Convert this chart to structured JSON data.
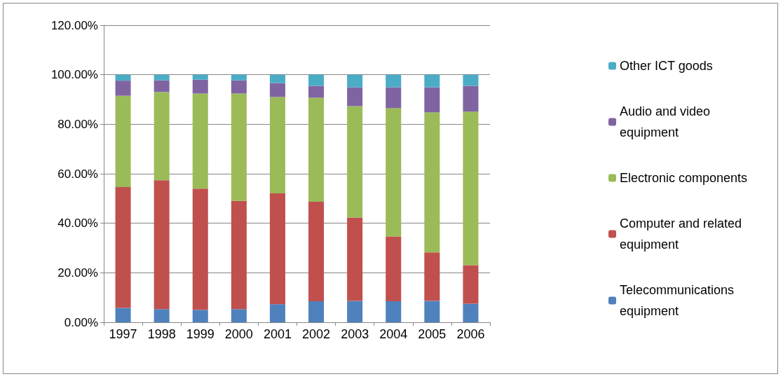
{
  "chart_data": {
    "type": "bar",
    "stacked": true,
    "categories": [
      "1997",
      "1998",
      "1999",
      "2000",
      "2001",
      "2002",
      "2003",
      "2004",
      "2005",
      "2006"
    ],
    "series": [
      {
        "name": "Telecommunications equipment",
        "color": "#4f81bd",
        "values": [
          5.8,
          5.3,
          5.0,
          5.3,
          7.3,
          8.5,
          8.6,
          8.5,
          8.6,
          7.5
        ]
      },
      {
        "name": "Computer and related equipment",
        "color": "#c0504d",
        "values": [
          48.8,
          52.1,
          49.0,
          43.7,
          44.8,
          40.2,
          33.7,
          26.2,
          19.6,
          15.6
        ]
      },
      {
        "name": "Electronic components",
        "color": "#9bbb59",
        "values": [
          36.9,
          35.6,
          38.4,
          43.4,
          38.9,
          42.0,
          45.0,
          51.8,
          56.6,
          62.0
        ]
      },
      {
        "name": "Audio and video equipment",
        "color": "#8064a2",
        "values": [
          6.1,
          4.7,
          5.6,
          5.3,
          5.6,
          4.8,
          7.6,
          8.4,
          10.1,
          10.4
        ]
      },
      {
        "name": "Other ICT goods",
        "color": "#4bacc6",
        "values": [
          2.4,
          2.3,
          2.0,
          2.3,
          3.4,
          4.5,
          5.1,
          5.1,
          5.1,
          4.5
        ]
      }
    ],
    "ylim": [
      0,
      120
    ],
    "yticks": [
      {
        "value": 0,
        "label": "0.00%"
      },
      {
        "value": 20,
        "label": "20.00%"
      },
      {
        "value": 40,
        "label": "40.00%"
      },
      {
        "value": 60,
        "label": "60.00%"
      },
      {
        "value": 80,
        "label": "80.00%"
      },
      {
        "value": 100,
        "label": "100.00%"
      },
      {
        "value": 120,
        "label": "120.00%"
      }
    ],
    "grid": "y",
    "legend": "right"
  }
}
